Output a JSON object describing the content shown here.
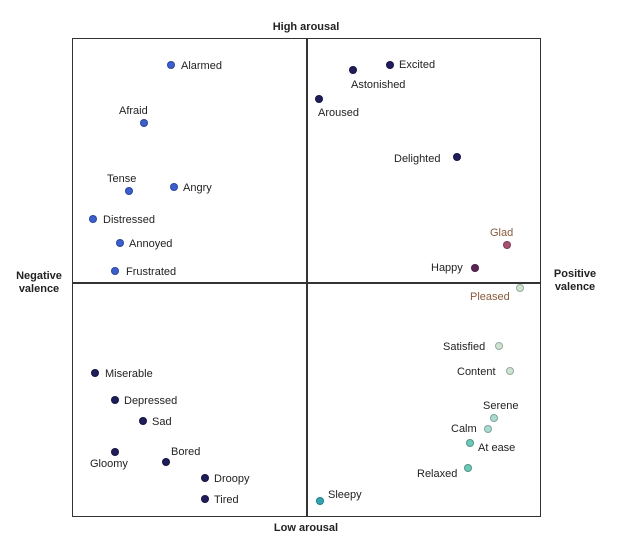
{
  "axes": {
    "top": "High arousal",
    "bottom": "Low arousal",
    "left": [
      "Negative",
      "valence"
    ],
    "right": [
      "Positive",
      "valence"
    ]
  },
  "colors": {
    "blue": "#3b5fcf",
    "navy": "#1f1d5a",
    "purple": "#5e2457",
    "rose": "#a85072",
    "pale": "#cfe3d2",
    "mint": "#a9dccf",
    "teal": "#6cc9b8",
    "cyan": "#2fa5b6"
  },
  "emotions": [
    {
      "label": "Alarmed",
      "color": "blue"
    },
    {
      "label": "Afraid",
      "color": "blue"
    },
    {
      "label": "Tense",
      "color": "blue"
    },
    {
      "label": "Angry",
      "color": "blue"
    },
    {
      "label": "Distressed",
      "color": "blue"
    },
    {
      "label": "Annoyed",
      "color": "blue"
    },
    {
      "label": "Frustrated",
      "color": "blue"
    },
    {
      "label": "Excited",
      "color": "navy"
    },
    {
      "label": "Astonished",
      "color": "navy"
    },
    {
      "label": "Aroused",
      "color": "navy"
    },
    {
      "label": "Delighted",
      "color": "navy"
    },
    {
      "label": "Glad",
      "color": "rose"
    },
    {
      "label": "Happy",
      "color": "purple"
    },
    {
      "label": "Pleased",
      "color": "pale"
    },
    {
      "label": "Satisfied",
      "color": "pale"
    },
    {
      "label": "Content",
      "color": "pale"
    },
    {
      "label": "Serene",
      "color": "mint"
    },
    {
      "label": "Calm",
      "color": "mint"
    },
    {
      "label": "At ease",
      "color": "teal"
    },
    {
      "label": "Relaxed",
      "color": "teal"
    },
    {
      "label": "Sleepy",
      "color": "cyan"
    },
    {
      "label": "Miserable",
      "color": "navy"
    },
    {
      "label": "Depressed",
      "color": "navy"
    },
    {
      "label": "Sad",
      "color": "navy"
    },
    {
      "label": "Gloomy",
      "color": "navy"
    },
    {
      "label": "Bored",
      "color": "navy"
    },
    {
      "label": "Droopy",
      "color": "navy"
    },
    {
      "label": "Tired",
      "color": "navy"
    }
  ]
}
